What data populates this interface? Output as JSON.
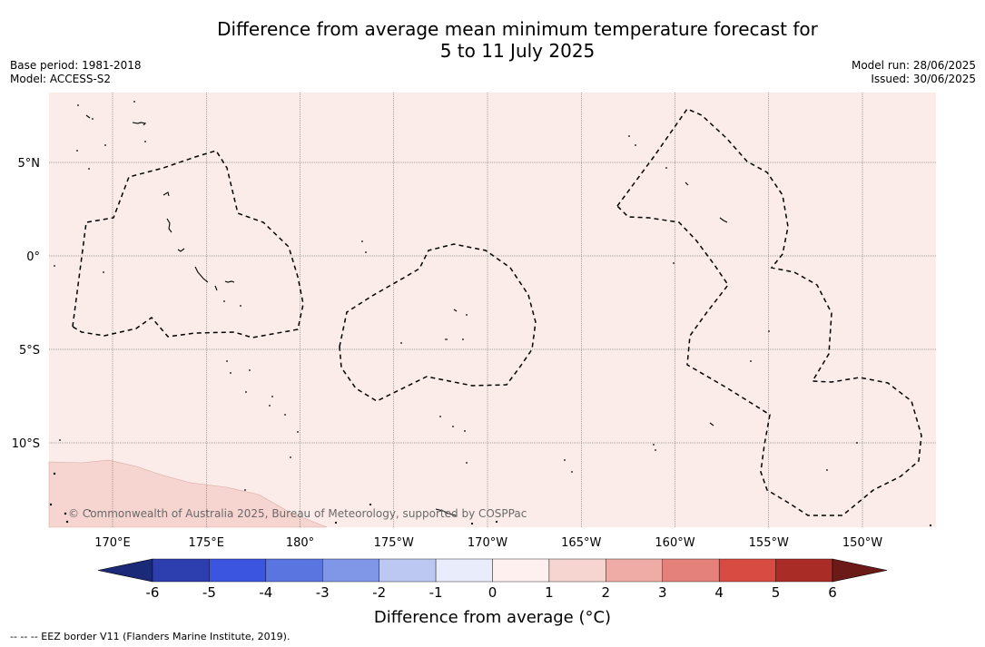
{
  "title": {
    "line1": "Difference from average mean minimum temperature forecast for",
    "line2": "5 to 11 July 2025"
  },
  "meta_left": {
    "base_period": "Base period: 1981-2018",
    "model": "Model: ACCESS-S2"
  },
  "meta_right": {
    "model_run": "Model run: 28/06/2025",
    "issued": "Issued: 30/06/2025"
  },
  "map": {
    "lat_labels": [
      "5°N",
      "0°",
      "5°S",
      "10°S"
    ],
    "lon_labels": [
      "170°E",
      "175°E",
      "180°",
      "175°W",
      "170°W",
      "165°W",
      "160°W",
      "155°W",
      "150°W"
    ],
    "lat_values": [
      5,
      0,
      -5,
      -10
    ],
    "lon_values": [
      170,
      175,
      180,
      -175,
      -170,
      -165,
      -160,
      -155,
      -150
    ],
    "base_fill_color": "#fbebe9",
    "south_fill_color": "#f6d4d0",
    "copyright": "© Commonwealth of Australia 2025, Bureau of Meteorology, supported by COSPPac"
  },
  "colorbar": {
    "ticks": [
      "-6",
      "-5",
      "-4",
      "-3",
      "-2",
      "-1",
      "0",
      "1",
      "2",
      "3",
      "4",
      "5",
      "6"
    ],
    "colors": [
      "#2d3fae",
      "#3b55e0",
      "#5a74e0",
      "#8097e8",
      "#bcc7f2",
      "#e9ecfb",
      "#fdf0ef",
      "#f6d4d0",
      "#efaca6",
      "#e4817a",
      "#d84b42",
      "#a92c26"
    ],
    "low_extend_color": "#1a2a78",
    "high_extend_color": "#6b1a18",
    "label": "Difference from average (°C)"
  },
  "footnote": "--  --  -- EEZ border V11 (Flanders Marine Institute, 2019)."
}
